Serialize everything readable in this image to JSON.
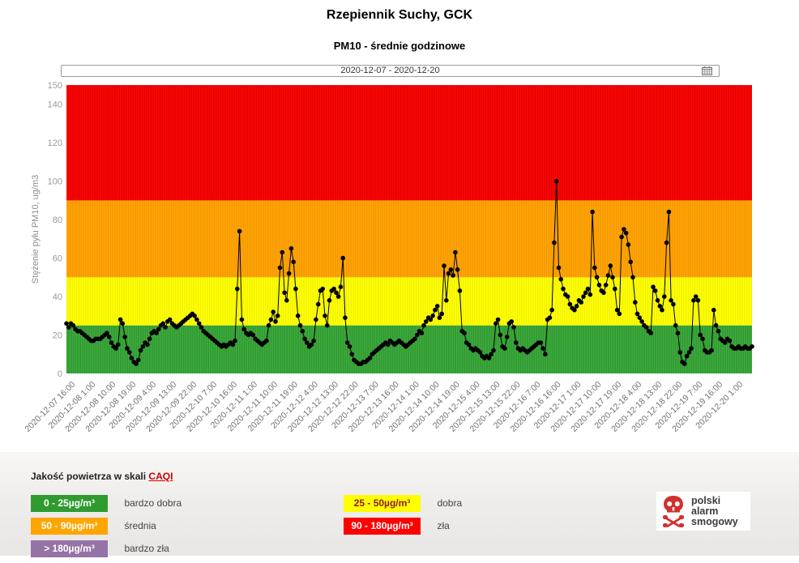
{
  "page": {
    "title": "Rzepiennik Suchy, GCK",
    "subtitle": "PM10 - średnie godzinowe"
  },
  "date_range": {
    "value": "2020-12-07  -  2020-12-20"
  },
  "chart_data": {
    "type": "line",
    "title": "Rzepiennik Suchy, GCK",
    "subtitle": "PM10 - średnie godzinowe",
    "ylabel": "Stężenie pyłu PM10, ug/m3",
    "ylim": [
      0,
      150
    ],
    "yticks": [
      0,
      20,
      40,
      60,
      80,
      100,
      120,
      140,
      150
    ],
    "grid": false,
    "x_start": "2020-12-07 13:00",
    "x_step_hours": 1,
    "x_tick_first_index": 3,
    "x_tick_every": 9,
    "x_tick_labels": [
      "2020-12-07 16:00",
      "2020-12-08 1:00",
      "2020-12-08 10:00",
      "2020-12-08 19:00",
      "2020-12-09 4:00",
      "2020-12-09 13:00",
      "2020-12-09 22:00",
      "2020-12-10 7:00",
      "2020-12-10 16:00",
      "2020-12-11 1:00",
      "2020-12-11 10:00",
      "2020-12-11 19:00",
      "2020-12-12 4:00",
      "2020-12-12 13:00",
      "2020-12-12 22:00",
      "2020-12-13 7:00",
      "2020-12-13 16:00",
      "2020-12-14 1:00",
      "2020-12-14 10:00",
      "2020-12-14 19:00",
      "2020-12-15 4:00",
      "2020-12-15 13:00",
      "2020-12-15 22:00",
      "2020-12-16 7:00",
      "2020-12-16 16:00",
      "2020-12-17 1:00",
      "2020-12-17 10:00",
      "2020-12-17 19:00",
      "2020-12-18 4:00",
      "2020-12-18 13:00",
      "2020-12-18 22:00",
      "2020-12-19 7:00",
      "2020-12-19 16:00",
      "2020-12-20 1:00"
    ],
    "bands": [
      {
        "range": [
          0,
          25
        ],
        "color": "#2F9B2F",
        "stripe": "#46AD46",
        "label": "bardzo dobra"
      },
      {
        "range": [
          25,
          50
        ],
        "color": "#FFFF04",
        "stripe": "#EDED00",
        "label": "dobra"
      },
      {
        "range": [
          50,
          90
        ],
        "color": "#FFA405",
        "stripe": "#F19700",
        "label": "średnia"
      },
      {
        "range": [
          90,
          150
        ],
        "color": "#FA0603",
        "stripe": "#E00000",
        "label": "zła"
      }
    ],
    "series": [
      {
        "name": "PM10",
        "color": "#000000",
        "values": [
          26,
          24,
          26,
          25,
          23,
          22,
          22,
          21,
          20,
          19,
          18,
          17,
          17,
          18,
          18,
          18,
          19,
          20,
          21,
          19,
          16,
          14,
          13,
          15,
          28,
          26,
          19,
          13,
          11,
          8,
          6,
          5,
          7,
          12,
          14,
          16,
          15,
          18,
          21,
          22,
          21,
          23,
          25,
          26,
          24,
          27,
          28,
          26,
          25,
          24,
          25,
          26,
          27,
          28,
          29,
          30,
          31,
          30,
          28,
          26,
          24,
          22,
          21,
          20,
          19,
          18,
          17,
          16,
          15,
          14,
          15,
          14,
          15,
          16,
          15,
          17,
          44,
          74,
          28,
          23,
          21,
          20,
          21,
          20,
          18,
          17,
          16,
          15,
          16,
          17,
          25,
          28,
          32,
          27,
          30,
          55,
          63,
          42,
          38,
          52,
          65,
          58,
          44,
          30,
          25,
          22,
          18,
          16,
          14,
          15,
          17,
          28,
          36,
          43,
          44,
          30,
          25,
          38,
          43,
          44,
          42,
          40,
          45,
          60,
          29,
          16,
          14,
          10,
          7,
          6,
          5,
          5,
          6,
          6,
          7,
          8,
          10,
          11,
          12,
          13,
          14,
          15,
          16,
          15,
          17,
          16,
          15,
          16,
          17,
          16,
          15,
          14,
          15,
          16,
          17,
          18,
          20,
          22,
          21,
          25,
          27,
          29,
          28,
          30,
          33,
          35,
          29,
          31,
          56,
          38,
          52,
          54,
          51,
          63,
          54,
          43,
          22,
          21,
          16,
          15,
          13,
          12,
          13,
          12,
          11,
          9,
          8,
          9,
          8,
          10,
          12,
          26,
          28,
          20,
          14,
          13,
          19,
          26,
          27,
          24,
          16,
          13,
          12,
          13,
          12,
          11,
          12,
          13,
          14,
          15,
          16,
          16,
          13,
          10,
          28,
          29,
          33,
          68,
          100,
          55,
          49,
          44,
          41,
          40,
          36,
          34,
          33,
          35,
          38,
          37,
          40,
          42,
          44,
          41,
          84,
          55,
          50,
          46,
          43,
          42,
          46,
          51,
          56,
          50,
          44,
          33,
          31,
          71,
          75,
          73,
          67,
          58,
          50,
          37,
          31,
          29,
          27,
          25,
          24,
          22,
          21,
          45,
          43,
          38,
          35,
          33,
          40,
          68,
          84,
          38,
          36,
          25,
          21,
          11,
          6,
          5,
          9,
          11,
          13,
          38,
          40,
          38,
          20,
          18,
          12,
          11,
          11,
          12,
          33,
          25,
          22,
          18,
          17,
          16,
          18,
          17,
          14,
          13,
          13,
          14,
          13,
          13,
          14,
          13,
          13,
          14
        ]
      }
    ]
  },
  "legend": {
    "header_text": "Jakość powietrza w skali ",
    "link_text": "CAQI",
    "items": [
      {
        "range": "0 - 25µg/m³",
        "label": "bardzo dobra",
        "color": "#2F9B2F",
        "text_color": "#ffffff"
      },
      {
        "range": "25 - 50µg/m³",
        "label": "dobra",
        "color": "#FFFF00",
        "text_color": "#8B1A1A"
      },
      {
        "range": "50 - 90µg/m³",
        "label": "średnia",
        "color": "#FFA500",
        "text_color": "#ffffff"
      },
      {
        "range": "90 - 180µg/m³",
        "label": "zła",
        "color": "#FF0000",
        "text_color": "#ffffff"
      },
      {
        "range": "> 180µg/m³",
        "label": "bardzo zła",
        "color": "#9673A6",
        "text_color": "#ffffff"
      }
    ]
  },
  "logo": {
    "line1": "polski",
    "line2": "alarm",
    "line3": "smogowy",
    "icon_color": "#D2302C"
  },
  "colors": {
    "axis_text": "#999999",
    "x_label_text": "#707070",
    "line": "#000000"
  }
}
